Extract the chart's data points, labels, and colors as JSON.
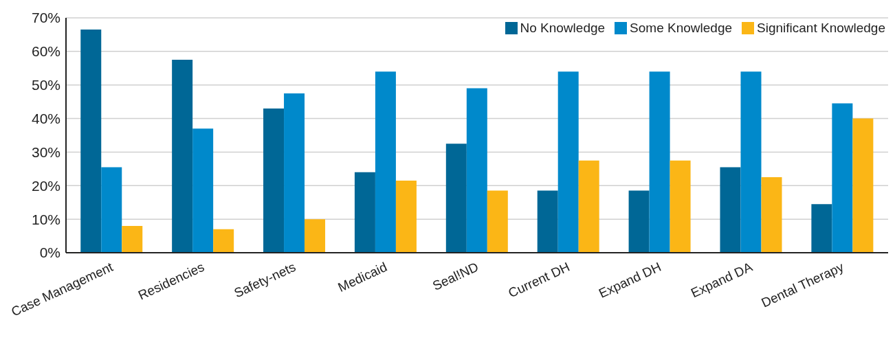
{
  "chart_data": {
    "type": "bar",
    "categories": [
      "Case Management",
      "Residencies",
      "Safety-nets",
      "Medicaid",
      "Seal!ND",
      "Current DH",
      "Expand DH",
      "Expand DA",
      "Dental Therapy"
    ],
    "series": [
      {
        "name": "No Knowledge",
        "color": "#006796",
        "values": [
          66.5,
          57.5,
          43,
          24,
          32.5,
          18.5,
          18.5,
          25.5,
          14.5
        ]
      },
      {
        "name": "Some Knowledge",
        "color": "#0089cb",
        "values": [
          25.5,
          37,
          47.5,
          54,
          49,
          54,
          54,
          54,
          44.5
        ]
      },
      {
        "name": "Significant Knowledge",
        "color": "#fbb616",
        "values": [
          8,
          7,
          10,
          21.5,
          18.5,
          27.5,
          27.5,
          22.5,
          40
        ]
      }
    ],
    "ylim": [
      0,
      70
    ],
    "yticks": [
      {
        "value": 0,
        "label": "0%"
      },
      {
        "value": 10,
        "label": "10%"
      },
      {
        "value": 20,
        "label": "20%"
      },
      {
        "value": 30,
        "label": "30%"
      },
      {
        "value": 40,
        "label": "40%"
      },
      {
        "value": 50,
        "label": "50%"
      },
      {
        "value": 60,
        "label": "60%"
      },
      {
        "value": 70,
        "label": "70%"
      }
    ],
    "grid": "y",
    "legend": "top right"
  }
}
